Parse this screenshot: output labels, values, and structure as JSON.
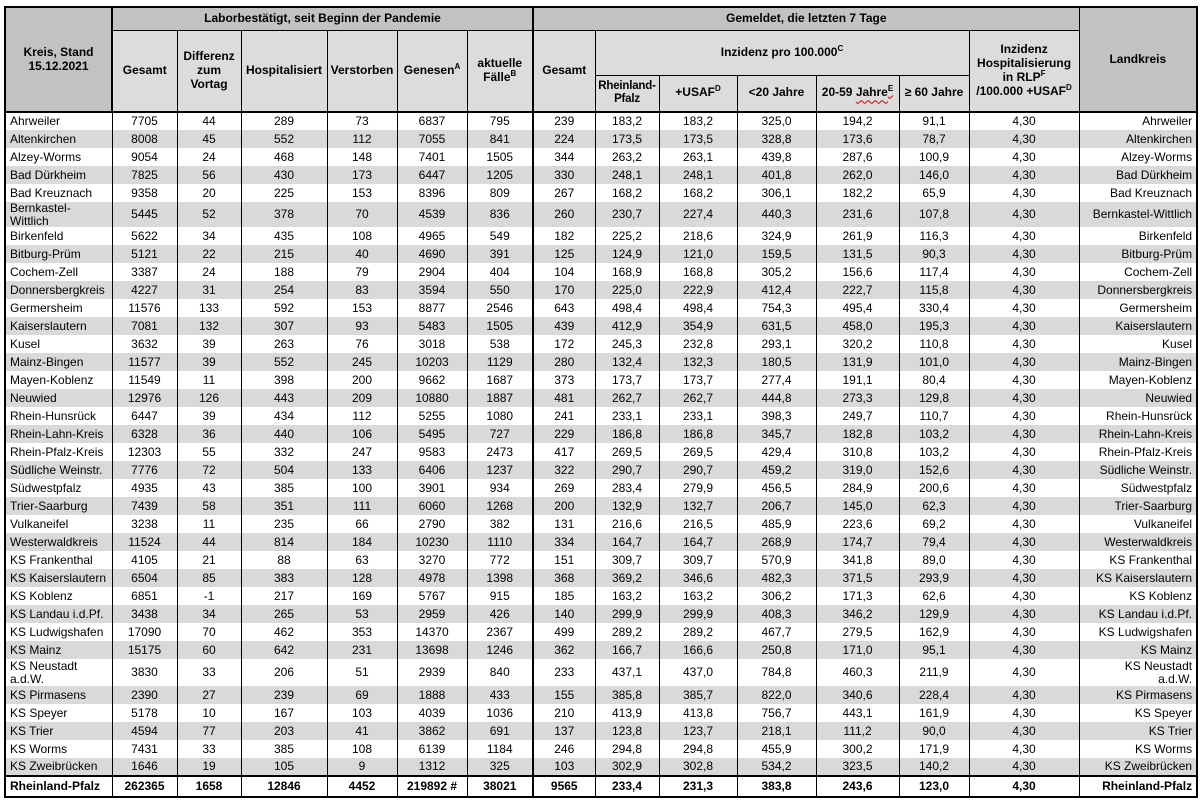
{
  "colors": {
    "header_dark_gray": "#c2c2c2",
    "header_light_gray": "#dcdcdc",
    "row_stripe_gray": "#d9d9d9",
    "spellcheck_wavy_red": "#cc0000",
    "border_black": "#000000"
  },
  "headers": {
    "corner": "Kreis, Stand\n15.12.2021",
    "group_labor": "Laborbestätigt, seit Beginn der Pandemie",
    "group_gemeldet": "Gemeldet, die letzten 7 Tage",
    "landkreis": "Landkreis",
    "gesamt": "Gesamt",
    "differenz": "Differenz zum Vortag",
    "hospitalisiert": "Hospitalisiert",
    "verstorben": "Verstorben",
    "genesen": "Genesen",
    "genesen_sup": "A",
    "aktuelle_faelle": "aktuelle Fälle",
    "aktuelle_faelle_sup": "B",
    "gesamt7": "Gesamt",
    "inzidenz": "Inzidenz pro 100.000",
    "inzidenz_sup": "C",
    "rheinland_pfalz": "Rheinland-Pfalz",
    "usaf": "+USAF",
    "usaf_sup": "D",
    "unter20": "<20 Jahre",
    "j2059_a": "20-59",
    "j2059_b": "Jahre",
    "j2059_sup": "E",
    "ab60": "≥ 60 Jahre",
    "inz_hosp_l1": "Inzidenz",
    "inz_hosp_l2": "Hospitalisierung",
    "inz_hosp_l3": "in RLP",
    "inz_hosp_l3_sup": "F",
    "inz_hosp_l4": "/100.000 +USAF",
    "inz_hosp_l4_sup": "D"
  },
  "rows": [
    [
      "Ahrweiler",
      "7705",
      "44",
      "289",
      "73",
      "6837",
      "795",
      "239",
      "183,2",
      "183,2",
      "325,0",
      "194,2",
      "91,1",
      "4,30",
      "Ahrweiler"
    ],
    [
      "Altenkirchen",
      "8008",
      "45",
      "552",
      "112",
      "7055",
      "841",
      "224",
      "173,5",
      "173,5",
      "328,8",
      "173,6",
      "78,7",
      "4,30",
      "Altenkirchen"
    ],
    [
      "Alzey-Worms",
      "9054",
      "24",
      "468",
      "148",
      "7401",
      "1505",
      "344",
      "263,2",
      "263,1",
      "439,8",
      "287,6",
      "100,9",
      "4,30",
      "Alzey-Worms"
    ],
    [
      "Bad Dürkheim",
      "7825",
      "56",
      "430",
      "173",
      "6447",
      "1205",
      "330",
      "248,1",
      "248,1",
      "401,8",
      "262,0",
      "146,0",
      "4,30",
      "Bad Dürkheim"
    ],
    [
      "Bad Kreuznach",
      "9358",
      "20",
      "225",
      "153",
      "8396",
      "809",
      "267",
      "168,2",
      "168,2",
      "306,1",
      "182,2",
      "65,9",
      "4,30",
      "Bad Kreuznach"
    ],
    [
      "Bernkastel-Wittlich",
      "5445",
      "52",
      "378",
      "70",
      "4539",
      "836",
      "260",
      "230,7",
      "227,4",
      "440,3",
      "231,6",
      "107,8",
      "4,30",
      "Bernkastel-Wittlich"
    ],
    [
      "Birkenfeld",
      "5622",
      "34",
      "435",
      "108",
      "4965",
      "549",
      "182",
      "225,2",
      "218,6",
      "324,9",
      "261,9",
      "116,3",
      "4,30",
      "Birkenfeld"
    ],
    [
      "Bitburg-Prüm",
      "5121",
      "22",
      "215",
      "40",
      "4690",
      "391",
      "125",
      "124,9",
      "121,0",
      "159,5",
      "131,5",
      "90,3",
      "4,30",
      "Bitburg-Prüm"
    ],
    [
      "Cochem-Zell",
      "3387",
      "24",
      "188",
      "79",
      "2904",
      "404",
      "104",
      "168,9",
      "168,8",
      "305,2",
      "156,6",
      "117,4",
      "4,30",
      "Cochem-Zell"
    ],
    [
      "Donnersbergkreis",
      "4227",
      "31",
      "254",
      "83",
      "3594",
      "550",
      "170",
      "225,0",
      "222,9",
      "412,4",
      "222,7",
      "115,8",
      "4,30",
      "Donnersbergkreis"
    ],
    [
      "Germersheim",
      "11576",
      "133",
      "592",
      "153",
      "8877",
      "2546",
      "643",
      "498,4",
      "498,4",
      "754,3",
      "495,4",
      "330,4",
      "4,30",
      "Germersheim"
    ],
    [
      "Kaiserslautern",
      "7081",
      "132",
      "307",
      "93",
      "5483",
      "1505",
      "439",
      "412,9",
      "354,9",
      "631,5",
      "458,0",
      "195,3",
      "4,30",
      "Kaiserslautern"
    ],
    [
      "Kusel",
      "3632",
      "39",
      "263",
      "76",
      "3018",
      "538",
      "172",
      "245,3",
      "232,8",
      "293,1",
      "320,2",
      "110,8",
      "4,30",
      "Kusel"
    ],
    [
      "Mainz-Bingen",
      "11577",
      "39",
      "552",
      "245",
      "10203",
      "1129",
      "280",
      "132,4",
      "132,3",
      "180,5",
      "131,9",
      "101,0",
      "4,30",
      "Mainz-Bingen"
    ],
    [
      "Mayen-Koblenz",
      "11549",
      "11",
      "398",
      "200",
      "9662",
      "1687",
      "373",
      "173,7",
      "173,7",
      "277,4",
      "191,1",
      "80,4",
      "4,30",
      "Mayen-Koblenz"
    ],
    [
      "Neuwied",
      "12976",
      "126",
      "443",
      "209",
      "10880",
      "1887",
      "481",
      "262,7",
      "262,7",
      "444,8",
      "273,3",
      "129,8",
      "4,30",
      "Neuwied"
    ],
    [
      "Rhein-Hunsrück",
      "6447",
      "39",
      "434",
      "112",
      "5255",
      "1080",
      "241",
      "233,1",
      "233,1",
      "398,3",
      "249,7",
      "110,7",
      "4,30",
      "Rhein-Hunsrück"
    ],
    [
      "Rhein-Lahn-Kreis",
      "6328",
      "36",
      "440",
      "106",
      "5495",
      "727",
      "229",
      "186,8",
      "186,8",
      "345,7",
      "182,8",
      "103,2",
      "4,30",
      "Rhein-Lahn-Kreis"
    ],
    [
      "Rhein-Pfalz-Kreis",
      "12303",
      "55",
      "332",
      "247",
      "9583",
      "2473",
      "417",
      "269,5",
      "269,5",
      "429,4",
      "310,8",
      "103,2",
      "4,30",
      "Rhein-Pfalz-Kreis"
    ],
    [
      "Südliche Weinstr.",
      "7776",
      "72",
      "504",
      "133",
      "6406",
      "1237",
      "322",
      "290,7",
      "290,7",
      "459,2",
      "319,0",
      "152,6",
      "4,30",
      "Südliche Weinstr."
    ],
    [
      "Südwestpfalz",
      "4935",
      "43",
      "385",
      "100",
      "3901",
      "934",
      "269",
      "283,4",
      "279,9",
      "456,5",
      "284,9",
      "200,6",
      "4,30",
      "Südwestpfalz"
    ],
    [
      "Trier-Saarburg",
      "7439",
      "58",
      "351",
      "111",
      "6060",
      "1268",
      "200",
      "132,9",
      "132,7",
      "206,7",
      "145,0",
      "62,3",
      "4,30",
      "Trier-Saarburg"
    ],
    [
      "Vulkaneifel",
      "3238",
      "11",
      "235",
      "66",
      "2790",
      "382",
      "131",
      "216,6",
      "216,5",
      "485,9",
      "223,6",
      "69,2",
      "4,30",
      "Vulkaneifel"
    ],
    [
      "Westerwaldkreis",
      "11524",
      "44",
      "814",
      "184",
      "10230",
      "1110",
      "334",
      "164,7",
      "164,7",
      "268,9",
      "174,7",
      "79,4",
      "4,30",
      "Westerwaldkreis"
    ],
    [
      "KS Frankenthal",
      "4105",
      "21",
      "88",
      "63",
      "3270",
      "772",
      "151",
      "309,7",
      "309,7",
      "570,9",
      "341,8",
      "89,0",
      "4,30",
      "KS Frankenthal"
    ],
    [
      "KS Kaiserslautern",
      "6504",
      "85",
      "383",
      "128",
      "4978",
      "1398",
      "368",
      "369,2",
      "346,6",
      "482,3",
      "371,5",
      "293,9",
      "4,30",
      "KS Kaiserslautern"
    ],
    [
      "KS Koblenz",
      "6851",
      "-1",
      "217",
      "169",
      "5767",
      "915",
      "185",
      "163,2",
      "163,2",
      "306,2",
      "171,3",
      "62,6",
      "4,30",
      "KS Koblenz"
    ],
    [
      "KS Landau i.d.Pf.",
      "3438",
      "34",
      "265",
      "53",
      "2959",
      "426",
      "140",
      "299,9",
      "299,9",
      "408,3",
      "346,2",
      "129,9",
      "4,30",
      "KS Landau i.d.Pf."
    ],
    [
      "KS Ludwigshafen",
      "17090",
      "70",
      "462",
      "353",
      "14370",
      "2367",
      "499",
      "289,2",
      "289,2",
      "467,7",
      "279,5",
      "162,9",
      "4,30",
      "KS Ludwigshafen"
    ],
    [
      "KS Mainz",
      "15175",
      "60",
      "642",
      "231",
      "13698",
      "1246",
      "362",
      "166,7",
      "166,6",
      "250,8",
      "171,0",
      "95,1",
      "4,30",
      "KS Mainz"
    ],
    [
      "KS Neustadt\na.d.W.",
      "3830",
      "33",
      "206",
      "51",
      "2939",
      "840",
      "233",
      "437,1",
      "437,0",
      "784,8",
      "460,3",
      "211,9",
      "4,30",
      "KS Neustadt\na.d.W."
    ],
    [
      "KS Pirmasens",
      "2390",
      "27",
      "239",
      "69",
      "1888",
      "433",
      "155",
      "385,8",
      "385,7",
      "822,0",
      "340,6",
      "228,4",
      "4,30",
      "KS Pirmasens"
    ],
    [
      "KS Speyer",
      "5178",
      "10",
      "167",
      "103",
      "4039",
      "1036",
      "210",
      "413,9",
      "413,8",
      "756,7",
      "443,1",
      "161,9",
      "4,30",
      "KS Speyer"
    ],
    [
      "KS Trier",
      "4594",
      "77",
      "203",
      "41",
      "3862",
      "691",
      "137",
      "123,8",
      "123,7",
      "218,1",
      "111,2",
      "90,0",
      "4,30",
      "KS Trier"
    ],
    [
      "KS Worms",
      "7431",
      "33",
      "385",
      "108",
      "6139",
      "1184",
      "246",
      "294,8",
      "294,8",
      "455,9",
      "300,2",
      "171,9",
      "4,30",
      "KS Worms"
    ],
    [
      "KS Zweibrücken",
      "1646",
      "19",
      "105",
      "9",
      "1312",
      "325",
      "103",
      "302,9",
      "302,8",
      "534,2",
      "323,5",
      "140,2",
      "4,30",
      "KS Zweibrücken"
    ]
  ],
  "total": [
    "Rheinland-Pfalz",
    "262365",
    "1658",
    "12846",
    "4452",
    "219892 #",
    "38021",
    "9565",
    "233,4",
    "231,3",
    "383,8",
    "243,6",
    "123,0",
    "4,30",
    "Rheinland-Pfalz"
  ]
}
